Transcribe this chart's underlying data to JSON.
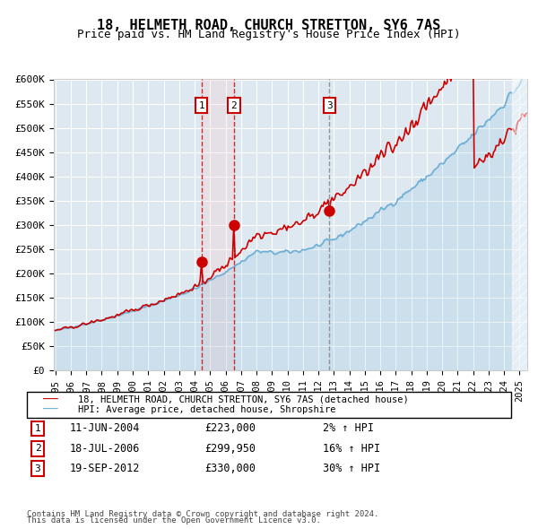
{
  "title": "18, HELMETH ROAD, CHURCH STRETTON, SY6 7AS",
  "subtitle": "Price paid vs. HM Land Registry's House Price Index (HPI)",
  "ylabel": "",
  "xlabel": "",
  "ylim": [
    0,
    600000
  ],
  "yticks": [
    0,
    50000,
    100000,
    150000,
    200000,
    250000,
    300000,
    350000,
    400000,
    450000,
    500000,
    550000,
    600000
  ],
  "ytick_labels": [
    "£0",
    "£50K",
    "£100K",
    "£150K",
    "£200K",
    "£250K",
    "£300K",
    "£350K",
    "£400K",
    "£450K",
    "£500K",
    "£550K",
    "£600K"
  ],
  "background_color": "#dde8f0",
  "plot_bg_color": "#dde8f0",
  "hpi_color": "#6baed6",
  "price_color": "#cc0000",
  "sale_marker_color": "#cc0000",
  "vline1_color": "#cc0000",
  "vline2_color": "#cc0000",
  "vline3_color": "#808080",
  "sale1_date": "2004-06-11",
  "sale1_price": 223000,
  "sale1_label": "1",
  "sale2_date": "2006-07-18",
  "sale2_price": 299950,
  "sale2_label": "2",
  "sale3_date": "2012-09-19",
  "sale3_price": 330000,
  "sale3_label": "3",
  "legend_line1": "18, HELMETH ROAD, CHURCH STRETTON, SY6 7AS (detached house)",
  "legend_line2": "HPI: Average price, detached house, Shropshire",
  "table_entries": [
    {
      "num": "1",
      "date": "11-JUN-2004",
      "price": "£223,000",
      "hpi": "2% ↑ HPI"
    },
    {
      "num": "2",
      "date": "18-JUL-2006",
      "price": "£299,950",
      "hpi": "16% ↑ HPI"
    },
    {
      "num": "3",
      "date": "19-SEP-2012",
      "price": "£330,000",
      "hpi": "30% ↑ HPI"
    }
  ],
  "footnote1": "Contains HM Land Registry data © Crown copyright and database right 2024.",
  "footnote2": "This data is licensed under the Open Government Licence v3.0.",
  "hatch_color": "#b0c4d8",
  "x_start_year": 1995,
  "x_end_year": 2025
}
